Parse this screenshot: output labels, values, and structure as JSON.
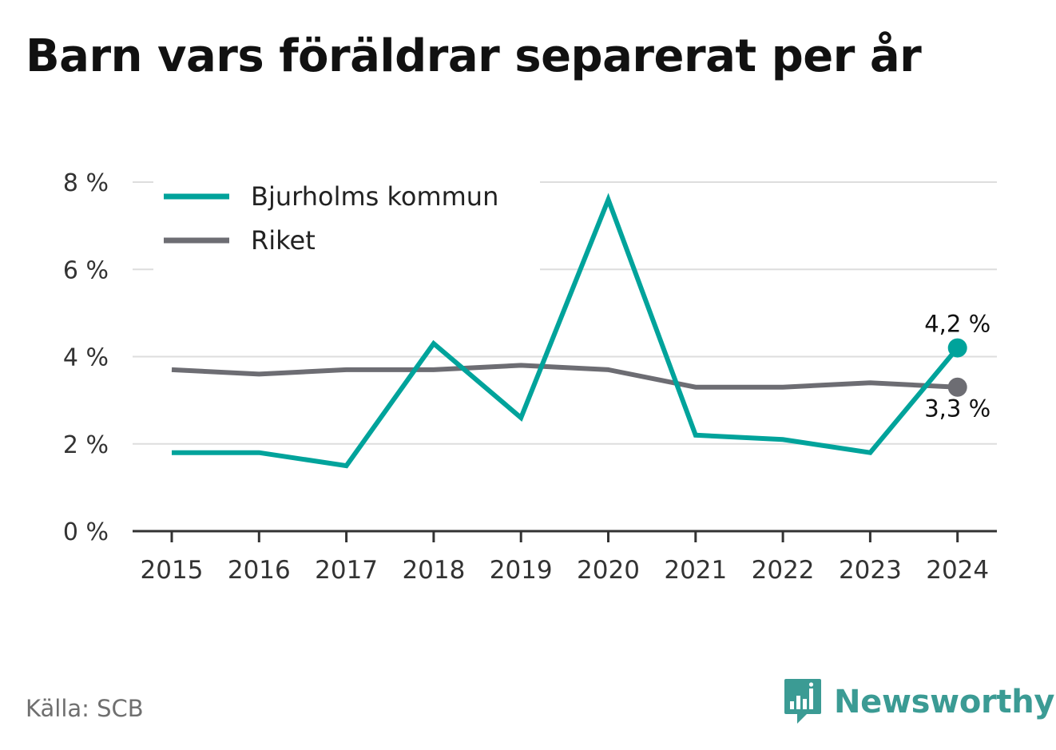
{
  "title": "Barn vars föräldrar separerat per år",
  "source": "Källa: SCB",
  "brand": {
    "name": "Newsworthy",
    "icon": "newsworthy-logo-icon"
  },
  "colors": {
    "bjurholm": "#00a39b",
    "riket": "#6d6d73",
    "grid": "#dddddd",
    "axis": "#333333",
    "brand": "#3b9b94"
  },
  "chart_data": {
    "type": "line",
    "categories": [
      "2015",
      "2016",
      "2017",
      "2018",
      "2019",
      "2020",
      "2021",
      "2022",
      "2023",
      "2024"
    ],
    "series": [
      {
        "name": "Bjurholms kommun",
        "values": [
          1.8,
          1.8,
          1.5,
          4.3,
          2.6,
          7.6,
          2.2,
          2.1,
          1.8,
          4.2
        ],
        "end_label": "4,2 %"
      },
      {
        "name": "Riket",
        "values": [
          3.7,
          3.6,
          3.7,
          3.7,
          3.8,
          3.7,
          3.3,
          3.3,
          3.4,
          3.3
        ],
        "end_label": "3,3 %"
      }
    ],
    "yticks": [
      0,
      2,
      4,
      6,
      8
    ],
    "ytick_labels": [
      "0 %",
      "2 %",
      "4 %",
      "6 %",
      "8 %"
    ],
    "ylim": [
      0,
      8
    ],
    "grid": true,
    "legend": "top-left"
  }
}
